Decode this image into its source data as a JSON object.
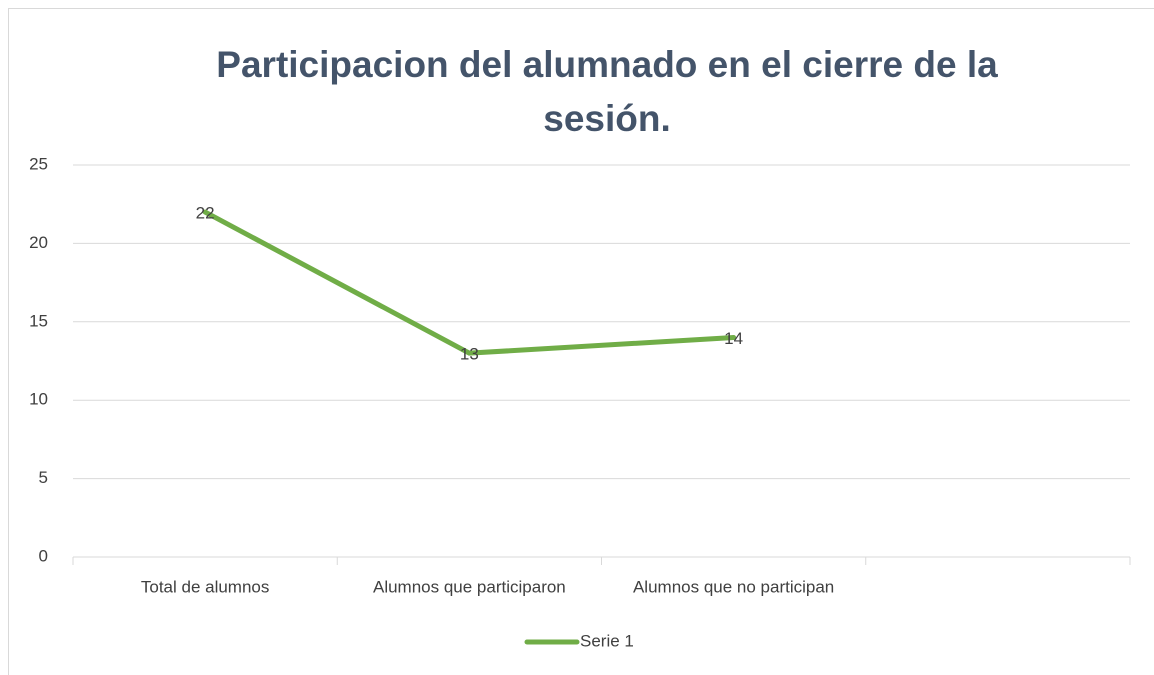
{
  "chart_data": {
    "type": "line",
    "title": "Participacion del alumnado en el cierre de la sesión.",
    "categories": [
      "Total de alumnos",
      "Alumnos que participaron",
      "Alumnos que no participan",
      null
    ],
    "series": [
      {
        "name": "Serie 1",
        "color": "#70ad47",
        "values": [
          22,
          13,
          14,
          null
        ]
      }
    ],
    "ylim": [
      0,
      25
    ],
    "yticks": [
      0,
      5,
      10,
      15,
      20,
      25
    ],
    "grid": true,
    "legend": "bottom",
    "data_labels": true
  }
}
